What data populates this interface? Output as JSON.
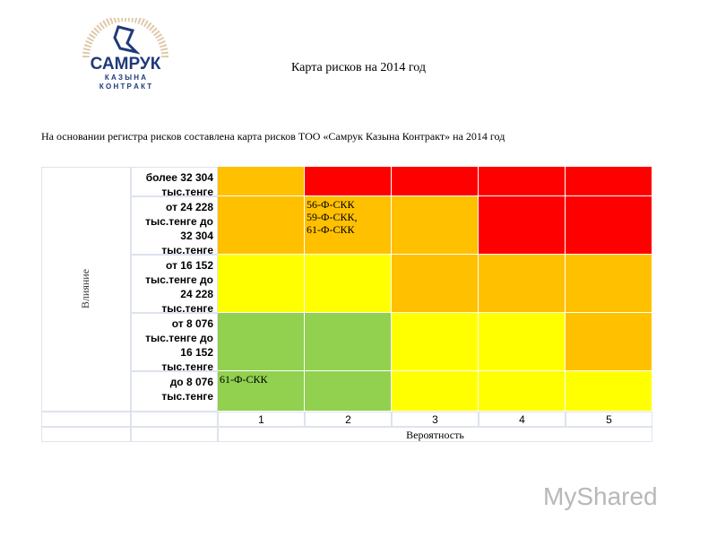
{
  "logo": {
    "line1": "САМРУК",
    "line2": "К А З Ы Н А",
    "line3": "К О Н Т Р А К Т"
  },
  "header": {
    "title": "Карта рисков на 2014 год"
  },
  "intro": "На основании регистра рисков составлена карта рисков ТОО «Самрук Казына Контракт» на 2014 год",
  "table": {
    "row_axis": "Влияние",
    "column_axis": "Вероятность",
    "columns": [
      "1",
      "2",
      "3",
      "4",
      "5"
    ],
    "rows": [
      {
        "label": "более 32 304 тыс.тенге",
        "cells": [
          {
            "color": "#ffc000"
          },
          {
            "color": "#ff0000"
          },
          {
            "color": "#ff0000"
          },
          {
            "color": "#ff0000"
          },
          {
            "color": "#ff0000"
          }
        ]
      },
      {
        "label": "от 24 228 тыс.тенге до 32 304 тыс.тенге",
        "cells": [
          {
            "color": "#ffc000"
          },
          {
            "color": "#ffc000",
            "lines": [
              "56-Ф-СКК",
              "59-Ф-СКК,",
              "61-Ф-СКК"
            ]
          },
          {
            "color": "#ffc000"
          },
          {
            "color": "#ff0000"
          },
          {
            "color": "#ff0000"
          }
        ]
      },
      {
        "label": "от 16 152 тыс.тенге до 24 228 тыс.тенге",
        "cells": [
          {
            "color": "#ffff00"
          },
          {
            "color": "#ffff00"
          },
          {
            "color": "#ffc000"
          },
          {
            "color": "#ffc000"
          },
          {
            "color": "#ffc000"
          }
        ]
      },
      {
        "label": "от 8 076 тыс.тенге до 16 152 тыс.тенге",
        "cells": [
          {
            "color": "#92d050"
          },
          {
            "color": "#92d050"
          },
          {
            "color": "#ffff00"
          },
          {
            "color": "#ffff00"
          },
          {
            "color": "#ffc000"
          }
        ]
      },
      {
        "label": "до 8 076 тыс.тенге",
        "cells": [
          {
            "color": "#92d050",
            "lines": [
              "61-Ф-СКК"
            ]
          },
          {
            "color": "#92d050"
          },
          {
            "color": "#ffff00"
          },
          {
            "color": "#ffff00"
          },
          {
            "color": "#ffff00"
          }
        ]
      }
    ]
  },
  "watermark": "MyShared"
}
